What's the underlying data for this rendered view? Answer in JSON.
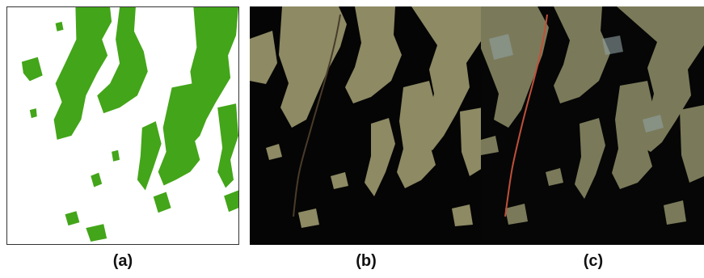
{
  "panels": [
    {
      "caption": "(a)",
      "fill_color": "#43a519",
      "background": "#ffffff"
    },
    {
      "caption": "(b)",
      "fill_color": "#8d8a64",
      "background": "#050505"
    },
    {
      "caption": "(c)",
      "fill_color": "#7a7a5a",
      "background": "#060606"
    }
  ]
}
